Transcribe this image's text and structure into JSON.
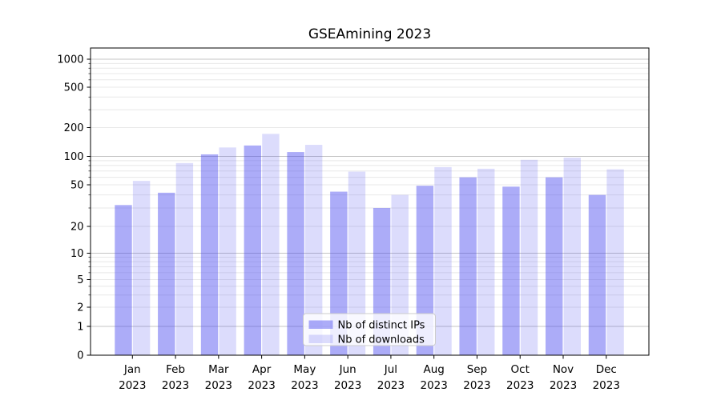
{
  "chart_data": {
    "type": "bar",
    "title": "GSEAmining 2023",
    "categories": [
      "Jan",
      "Feb",
      "Mar",
      "Apr",
      "May",
      "Jun",
      "Jul",
      "Aug",
      "Sep",
      "Oct",
      "Nov",
      "Dec"
    ],
    "category_sublabel": "2023",
    "series": [
      {
        "name": "Nb of distinct IPs",
        "color": "rgba(70,70,240,0.45)",
        "color_hex": "#acacf8",
        "values": [
          32,
          42,
          105,
          130,
          111,
          43,
          30,
          49,
          60,
          48,
          60,
          40
        ]
      },
      {
        "name": "Nb of downloads",
        "color": "rgba(70,70,240,0.19)",
        "color_hex": "#dcdcfc",
        "values": [
          55,
          85,
          124,
          172,
          132,
          69,
          40,
          77,
          74,
          92,
          97,
          73
        ]
      }
    ],
    "yscale": "symlog",
    "yticks": [
      0,
      1,
      2,
      5,
      10,
      20,
      50,
      100,
      200,
      500,
      1000
    ],
    "ytick_labels": [
      "0",
      "1",
      "2",
      "5",
      "10",
      "20",
      "50",
      "100",
      "200",
      "500",
      "1000"
    ],
    "ylim": [
      0,
      1300
    ],
    "xlabel": "",
    "ylabel": "",
    "grid": true,
    "legend_position": "lower center"
  }
}
